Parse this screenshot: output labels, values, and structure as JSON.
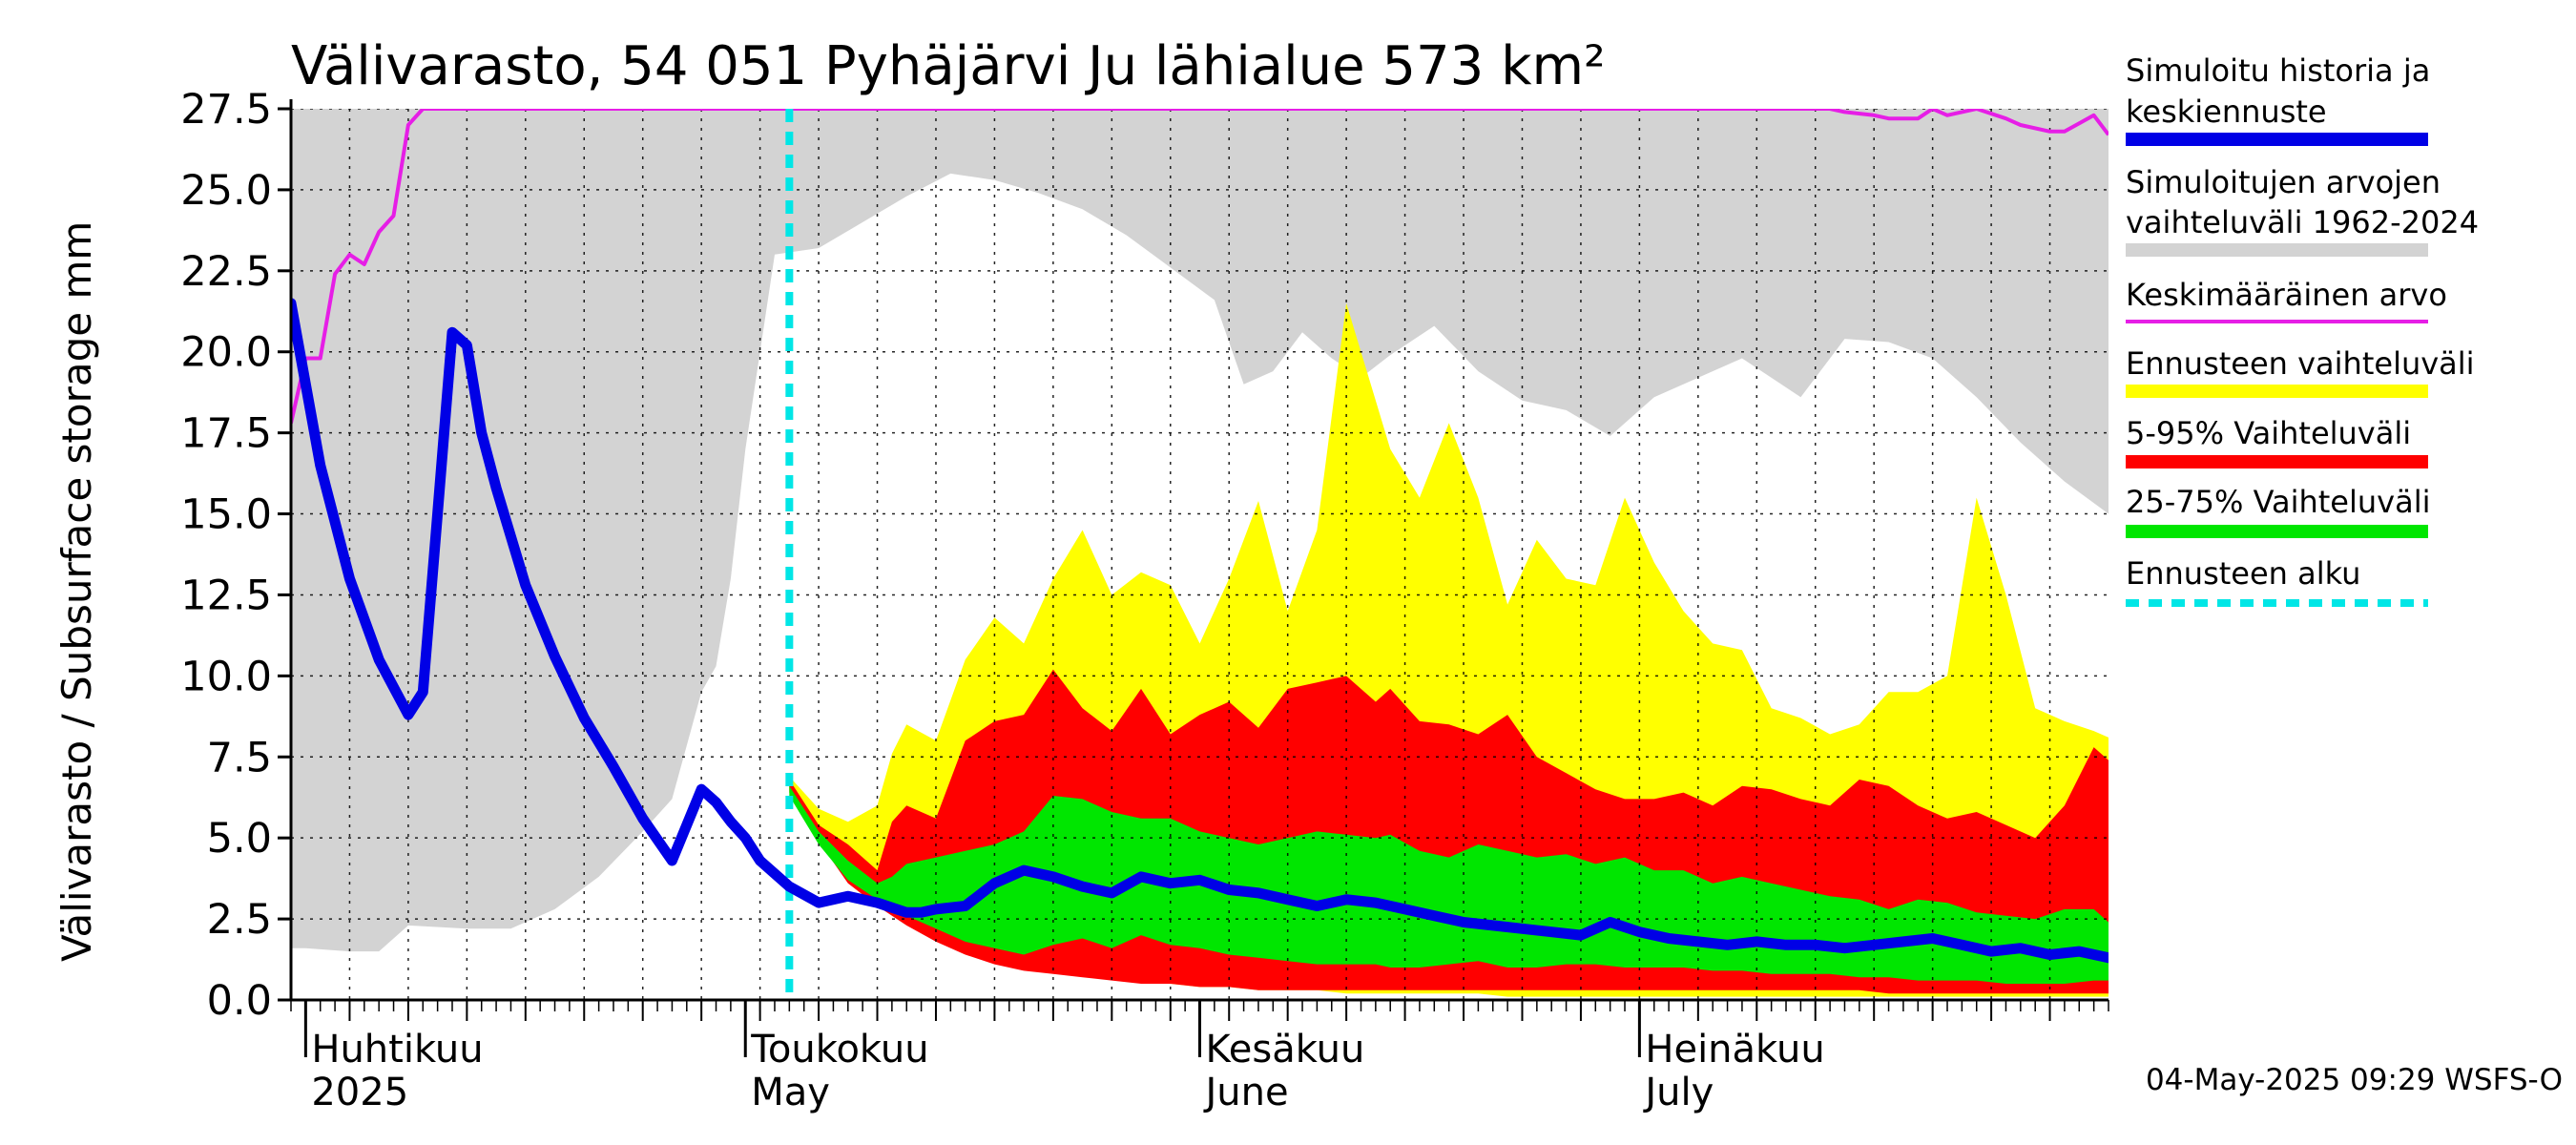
{
  "chart_data": {
    "type": "area",
    "title": "Välivarasto, 54 051 Pyhäjärvi Ju lähialue 573 km²",
    "ylabel": "Välivarasto / Subsurface storage  mm",
    "ylim": [
      0,
      27.5
    ],
    "yticks": [
      "0.0",
      "2.5",
      "5.0",
      "7.5",
      "10.0",
      "12.5",
      "15.0",
      "17.5",
      "20.0",
      "22.5",
      "25.0",
      "27.5"
    ],
    "x_start": "2025-03-31",
    "x_end": "2025-08-02",
    "forecast_start": "2025-05-04",
    "grid": true,
    "month_labels": [
      {
        "date": "2025-04-01",
        "line1": "Huhtikuu",
        "line2": "2025"
      },
      {
        "date": "2025-05-01",
        "line1": "Toukokuu",
        "line2": "May"
      },
      {
        "date": "2025-06-01",
        "line1": "Kesäkuu",
        "line2": "June"
      },
      {
        "date": "2025-07-01",
        "line1": "Heinäkuu",
        "line2": "July"
      }
    ],
    "timestamp": "04-May-2025 09:29 WSFS-O",
    "legend": [
      {
        "line1": "Simuloitu historia ja",
        "line2": "keskiennuste",
        "color": "#0000e6",
        "style": "thick"
      },
      {
        "line1": "Simuloitujen arvojen",
        "line2": "vaihteluväli 1962-2024",
        "color": "#d3d3d3",
        "style": "thick"
      },
      {
        "line1": "Keskimääräinen arvo",
        "line2": "",
        "color": "#e61ee6",
        "style": "thin"
      },
      {
        "line1": "Ennusteen vaihteluväli",
        "line2": "",
        "color": "#ffff00",
        "style": "thick"
      },
      {
        "line1": "5-95% Vaihteluväli",
        "line2": "",
        "color": "#ff0000",
        "style": "thick"
      },
      {
        "line1": "25-75% Vaihteluväli",
        "line2": "",
        "color": "#00e600",
        "style": "thick"
      },
      {
        "line1": "Ennusteen alku",
        "line2": "",
        "color": "#00e6e6",
        "style": "dashed"
      }
    ],
    "colors": {
      "hist_range": "#d3d3d3",
      "mean": "#e61ee6",
      "ens_range": "#ffff00",
      "p5_95": "#ff0000",
      "p25_75": "#00e600",
      "median": "#0000e6",
      "forecast_start": "#00e6e6"
    },
    "hist_range": {
      "x": [
        "2025-03-31",
        "2025-04-01",
        "2025-04-04",
        "2025-04-06",
        "2025-04-08",
        "2025-04-12",
        "2025-04-15",
        "2025-04-18",
        "2025-04-21",
        "2025-04-24",
        "2025-04-26",
        "2025-04-28",
        "2025-04-29",
        "2025-04-30",
        "2025-05-01",
        "2025-05-03",
        "2025-05-06",
        "2025-05-09",
        "2025-05-12",
        "2025-05-15",
        "2025-05-18",
        "2025-05-21",
        "2025-05-24",
        "2025-05-27",
        "2025-05-30",
        "2025-06-02",
        "2025-06-04",
        "2025-06-06",
        "2025-06-08",
        "2025-06-10",
        "2025-06-12",
        "2025-06-14",
        "2025-06-17",
        "2025-06-20",
        "2025-06-23",
        "2025-06-26",
        "2025-06-29",
        "2025-07-02",
        "2025-07-05",
        "2025-07-08",
        "2025-07-10",
        "2025-07-12",
        "2025-07-15",
        "2025-07-18",
        "2025-07-21",
        "2025-07-24",
        "2025-07-27",
        "2025-07-30",
        "2025-08-02"
      ],
      "low": [
        1.6,
        1.6,
        1.5,
        1.5,
        2.3,
        2.2,
        2.2,
        2.8,
        3.8,
        5.2,
        6.2,
        9.5,
        10.3,
        13,
        17,
        23,
        23.2,
        24,
        24.8,
        25.5,
        25.3,
        24.9,
        24.4,
        23.6,
        22.6,
        21.6,
        19,
        19.4,
        20.6,
        19.8,
        19.2,
        19.9,
        20.8,
        19.4,
        18.5,
        18.2,
        17.4,
        18.6,
        19.2,
        19.8,
        19.2,
        18.6,
        20.4,
        20.3,
        19.8,
        18.6,
        17.2,
        16,
        15
      ],
      "high": [
        27.5,
        27.5,
        27.5,
        27.5,
        27.5,
        27.5,
        27.5,
        27.5,
        27.5,
        27.5,
        27.5,
        27.5,
        27.5,
        27.5,
        27.5,
        27.5,
        27.5,
        27.5,
        27.5,
        27.5,
        27.5,
        27.5,
        27.5,
        27.5,
        27.5,
        27.5,
        27.5,
        27.5,
        27.5,
        27.5,
        27.5,
        27.5,
        27.5,
        27.5,
        27.5,
        27.5,
        27.5,
        27.5,
        27.5,
        27.5,
        27.5,
        27.5,
        27.5,
        27.5,
        27.5,
        27.5,
        27.5,
        27.5,
        27.5
      ]
    },
    "mean": {
      "x": [
        "2025-03-31",
        "2025-04-01",
        "2025-04-02",
        "2025-04-03",
        "2025-04-04",
        "2025-04-05",
        "2025-04-06",
        "2025-04-07",
        "2025-04-08",
        "2025-04-09",
        "2025-04-10",
        "2025-04-11",
        "2025-04-12",
        "2025-07-14",
        "2025-07-15",
        "2025-07-17",
        "2025-07-18",
        "2025-07-20",
        "2025-07-21",
        "2025-07-22",
        "2025-07-24",
        "2025-07-26",
        "2025-07-27",
        "2025-07-29",
        "2025-07-30",
        "2025-08-01",
        "2025-08-02"
      ],
      "y": [
        17.8,
        19.8,
        19.8,
        22.4,
        23,
        22.7,
        23.7,
        24.2,
        27,
        28,
        28,
        28,
        28,
        28,
        27.4,
        27.3,
        27.2,
        27.2,
        27.5,
        27.3,
        27.5,
        27.2,
        27,
        26.8,
        26.8,
        27.3,
        26.7
      ]
    },
    "median": {
      "x": [
        "2025-03-31",
        "2025-04-02",
        "2025-04-04",
        "2025-04-06",
        "2025-04-08",
        "2025-04-09",
        "2025-04-10",
        "2025-04-11",
        "2025-04-12",
        "2025-04-13",
        "2025-04-14",
        "2025-04-16",
        "2025-04-18",
        "2025-04-20",
        "2025-04-22",
        "2025-04-24",
        "2025-04-26",
        "2025-04-28",
        "2025-04-29",
        "2025-04-30",
        "2025-05-01",
        "2025-05-02",
        "2025-05-04",
        "2025-05-06",
        "2025-05-08",
        "2025-05-10",
        "2025-05-12",
        "2025-05-13",
        "2025-05-14",
        "2025-05-16",
        "2025-05-18",
        "2025-05-20",
        "2025-05-22",
        "2025-05-24",
        "2025-05-26",
        "2025-05-28",
        "2025-05-30",
        "2025-06-01",
        "2025-06-03",
        "2025-06-05",
        "2025-06-07",
        "2025-06-09",
        "2025-06-11",
        "2025-06-13",
        "2025-06-15",
        "2025-06-17",
        "2025-06-19",
        "2025-06-21",
        "2025-06-23",
        "2025-06-25",
        "2025-06-27",
        "2025-06-29",
        "2025-07-01",
        "2025-07-03",
        "2025-07-05",
        "2025-07-07",
        "2025-07-09",
        "2025-07-11",
        "2025-07-13",
        "2025-07-15",
        "2025-07-17",
        "2025-07-19",
        "2025-07-21",
        "2025-07-23",
        "2025-07-25",
        "2025-07-27",
        "2025-07-29",
        "2025-07-31",
        "2025-08-02"
      ],
      "y": [
        21.5,
        16.5,
        13,
        10.5,
        8.8,
        9.5,
        15,
        20.6,
        20.2,
        17.5,
        15.8,
        12.8,
        10.6,
        8.7,
        7.2,
        5.6,
        4.3,
        6.5,
        6.1,
        5.5,
        5,
        4.3,
        3.5,
        3,
        3.2,
        3,
        2.7,
        2.7,
        2.8,
        2.9,
        3.6,
        4,
        3.8,
        3.5,
        3.3,
        3.8,
        3.6,
        3.7,
        3.4,
        3.3,
        3.1,
        2.9,
        3.1,
        3,
        2.8,
        2.6,
        2.4,
        2.3,
        2.2,
        2.1,
        2,
        2.4,
        2.1,
        1.9,
        1.8,
        1.7,
        1.8,
        1.7,
        1.7,
        1.6,
        1.7,
        1.8,
        1.9,
        1.7,
        1.5,
        1.6,
        1.4,
        1.5,
        1.3
      ]
    },
    "forecast_dates": [
      "2025-05-04",
      "2025-05-06",
      "2025-05-08",
      "2025-05-10",
      "2025-05-11",
      "2025-05-12",
      "2025-05-14",
      "2025-05-16",
      "2025-05-18",
      "2025-05-20",
      "2025-05-22",
      "2025-05-24",
      "2025-05-26",
      "2025-05-28",
      "2025-05-30",
      "2025-06-01",
      "2025-06-03",
      "2025-06-05",
      "2025-06-07",
      "2025-06-09",
      "2025-06-11",
      "2025-06-13",
      "2025-06-14",
      "2025-06-16",
      "2025-06-18",
      "2025-06-20",
      "2025-06-22",
      "2025-06-24",
      "2025-06-26",
      "2025-06-28",
      "2025-06-30",
      "2025-07-02",
      "2025-07-04",
      "2025-07-06",
      "2025-07-08",
      "2025-07-10",
      "2025-07-12",
      "2025-07-14",
      "2025-07-16",
      "2025-07-18",
      "2025-07-20",
      "2025-07-22",
      "2025-07-24",
      "2025-07-26",
      "2025-07-28",
      "2025-07-30",
      "2025-08-01",
      "2025-08-02"
    ],
    "ens_range": {
      "low": [
        6.5,
        5.2,
        3.9,
        3.1,
        2.8,
        2.5,
        2,
        1.6,
        1.3,
        1.1,
        0.9,
        0.8,
        0.7,
        0.6,
        0.5,
        0.4,
        0.4,
        0.3,
        0.3,
        0.3,
        0.2,
        0.2,
        0.2,
        0.2,
        0.2,
        0.2,
        0.1,
        0.1,
        0.1,
        0.1,
        0.1,
        0.1,
        0.1,
        0.1,
        0.1,
        0.1,
        0.1,
        0.1,
        0.1,
        0.1,
        0.1,
        0.1,
        0.1,
        0.1,
        0.1,
        0.1,
        0.1,
        0.1
      ],
      "high": [
        6.9,
        5.9,
        5.5,
        6,
        7.6,
        8.5,
        8,
        10.5,
        11.8,
        11,
        13,
        14.5,
        12.5,
        13.2,
        12.8,
        11,
        13,
        15.4,
        12,
        14.5,
        21.5,
        18.5,
        17,
        15.5,
        17.8,
        15.5,
        12.2,
        14.2,
        13,
        12.8,
        15.5,
        13.5,
        12,
        11,
        10.8,
        9,
        8.7,
        8.2,
        8.5,
        9.5,
        9.5,
        10,
        15.5,
        12.5,
        9,
        8.6,
        8.3,
        8.1
      ]
    },
    "p5_95": {
      "low": [
        6.4,
        4.9,
        3.6,
        2.9,
        2.6,
        2.3,
        1.8,
        1.4,
        1.1,
        0.9,
        0.8,
        0.7,
        0.6,
        0.5,
        0.5,
        0.4,
        0.4,
        0.3,
        0.3,
        0.3,
        0.3,
        0.3,
        0.3,
        0.3,
        0.3,
        0.3,
        0.3,
        0.3,
        0.3,
        0.3,
        0.3,
        0.3,
        0.3,
        0.3,
        0.3,
        0.3,
        0.3,
        0.3,
        0.3,
        0.2,
        0.2,
        0.2,
        0.2,
        0.2,
        0.2,
        0.2,
        0.2,
        0.2
      ],
      "high": [
        6.8,
        5.4,
        4.8,
        4,
        5.5,
        6,
        5.6,
        8,
        8.6,
        8.8,
        10.2,
        9,
        8.3,
        9.6,
        8.2,
        8.8,
        9.2,
        8.4,
        9.6,
        9.8,
        10,
        9.2,
        9.6,
        8.6,
        8.5,
        8.2,
        8.8,
        7.5,
        7,
        6.5,
        6.2,
        6.2,
        6.4,
        6,
        6.6,
        6.5,
        6.2,
        6,
        6.8,
        6.6,
        6,
        5.6,
        5.8,
        5.4,
        5,
        6,
        7.8,
        7.4
      ]
    },
    "p25_75": {
      "low": [
        6.3,
        4.8,
        3.7,
        3.1,
        2.8,
        2.6,
        2.2,
        1.8,
        1.6,
        1.4,
        1.7,
        1.9,
        1.6,
        2,
        1.7,
        1.6,
        1.4,
        1.3,
        1.2,
        1.1,
        1.1,
        1.1,
        1,
        1,
        1.1,
        1.2,
        1,
        1,
        1.1,
        1.1,
        1,
        1,
        1,
        0.9,
        0.9,
        0.8,
        0.8,
        0.8,
        0.7,
        0.7,
        0.6,
        0.6,
        0.6,
        0.5,
        0.5,
        0.5,
        0.6,
        0.6
      ],
      "high": [
        6.6,
        5.2,
        4.3,
        3.6,
        3.8,
        4.2,
        4.4,
        4.6,
        4.8,
        5.2,
        6.3,
        6.2,
        5.8,
        5.6,
        5.6,
        5.2,
        5,
        4.8,
        5,
        5.2,
        5.1,
        5,
        5.1,
        4.6,
        4.4,
        4.8,
        4.6,
        4.4,
        4.5,
        4.2,
        4.4,
        4,
        4,
        3.6,
        3.8,
        3.6,
        3.4,
        3.2,
        3.1,
        2.8,
        3.1,
        3,
        2.7,
        2.6,
        2.5,
        2.8,
        2.8,
        2.4
      ]
    }
  }
}
